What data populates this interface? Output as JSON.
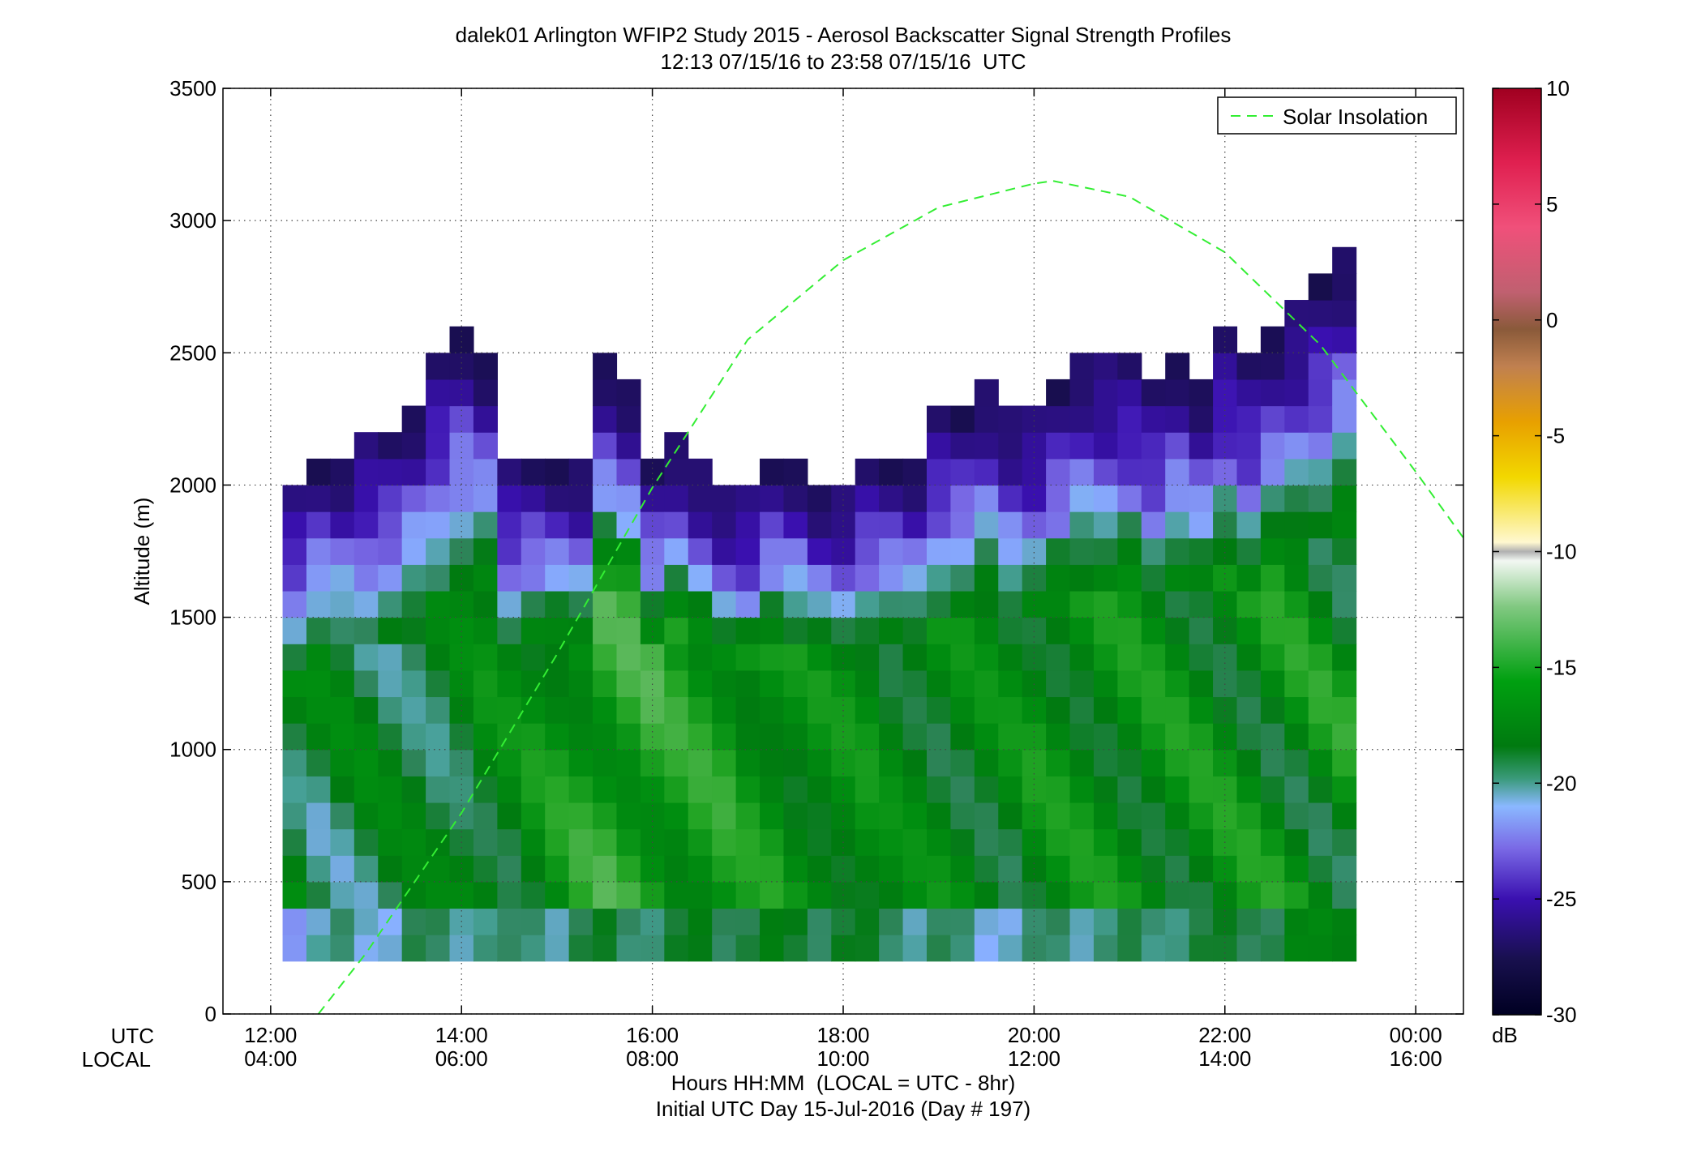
{
  "chart_data": {
    "type": "heatmap",
    "title": "dalek01 Arlington WFIP2 Study 2015 - Aerosol Backscatter Signal Strength Profiles",
    "subtitle": "12:13 07/15/16 to 23:58 07/15/16  UTC",
    "ylabel": "Altitude (m)",
    "xlabel": "Hours HH:MM  (LOCAL = UTC - 8hr)",
    "xlabel2": "Initial UTC Day 15-Jul-2016 (Day # 197)",
    "x_row_labels": [
      "UTC",
      "LOCAL"
    ],
    "x_unit": "hours UTC",
    "xlim": [
      11.5,
      24.5
    ],
    "ylim": [
      0,
      3500
    ],
    "grid": true,
    "x_ticks": [
      {
        "value": 12,
        "utc": "12:00",
        "local": "04:00"
      },
      {
        "value": 14,
        "utc": "14:00",
        "local": "06:00"
      },
      {
        "value": 16,
        "utc": "16:00",
        "local": "08:00"
      },
      {
        "value": 18,
        "utc": "18:00",
        "local": "10:00"
      },
      {
        "value": 20,
        "utc": "20:00",
        "local": "12:00"
      },
      {
        "value": 22,
        "utc": "22:00",
        "local": "14:00"
      },
      {
        "value": 24,
        "utc": "00:00",
        "local": "16:00"
      }
    ],
    "y_ticks": [
      "0",
      "500",
      "1000",
      "1500",
      "2000",
      "2500",
      "3000",
      "3500"
    ],
    "colorbar": {
      "unit": "dB",
      "range": [
        -30,
        10
      ],
      "ticks": [
        "-30",
        "-25",
        "-20",
        "-15",
        "-10",
        "-5",
        "0",
        "5",
        "10"
      ]
    },
    "legend": {
      "placement": "top-right",
      "entries": [
        {
          "name": "Solar Insolation",
          "style": "dashed",
          "color": "#33ee33"
        }
      ]
    },
    "heatmap": {
      "time_start": 12.25,
      "time_step": 0.25,
      "alt_start": 200,
      "alt_step": 100,
      "columns": [
        {
          "top": 2000,
          "base": -19.5,
          "mix": 2.0,
          "lo": -22.0,
          "up": 0.5
        },
        {
          "top": 2100,
          "base": -20.0,
          "mix": 2.0,
          "lo": -22.0,
          "up": 0.5
        },
        {
          "top": 2100,
          "base": -20.0,
          "mix": 2.0,
          "lo": -21.5,
          "up": 0.5
        },
        {
          "top": 2200,
          "base": -20.0,
          "mix": 2.0,
          "lo": -21.5,
          "up": 0.5
        },
        {
          "top": 2200,
          "base": -20.0,
          "mix": 1.8,
          "lo": -21.5,
          "up": 0.5
        },
        {
          "top": 2300,
          "base": -20.0,
          "mix": 1.6,
          "lo": -21.0,
          "up": 0.6
        },
        {
          "top": 2500,
          "base": -20.0,
          "mix": 1.6,
          "lo": -21.0,
          "up": 0.6
        },
        {
          "top": 2600,
          "base": -19.5,
          "mix": 1.6,
          "lo": -21.0,
          "up": 0.6
        },
        {
          "top": 2500,
          "base": -19.0,
          "mix": 1.6,
          "lo": -21.0,
          "up": 0.6
        },
        {
          "top": 2100,
          "base": -19.0,
          "mix": 1.6,
          "lo": -21.5,
          "up": 0.5
        },
        {
          "top": 2100,
          "base": -18.5,
          "mix": 1.6,
          "lo": -21.0,
          "up": 0.5
        },
        {
          "top": 2100,
          "base": -18.0,
          "mix": 1.6,
          "lo": -21.0,
          "up": 0.5
        },
        {
          "top": 2100,
          "base": -17.5,
          "mix": 1.6,
          "lo": -20.5,
          "up": 0.5
        },
        {
          "top": 2500,
          "base": -17.0,
          "mix": 1.6,
          "lo": -20.5,
          "up": 0.5
        },
        {
          "top": 2400,
          "base": -17.0,
          "mix": 1.6,
          "lo": -20.5,
          "up": 0.5
        },
        {
          "top": 2100,
          "base": -17.0,
          "mix": 1.6,
          "lo": -20.5,
          "up": 0.5
        },
        {
          "top": 2200,
          "base": -17.5,
          "mix": 1.6,
          "lo": -20.5,
          "up": 0.5
        },
        {
          "top": 2100,
          "base": -17.5,
          "mix": 1.5,
          "lo": -20.0,
          "up": 0.5
        },
        {
          "top": 2000,
          "base": -17.5,
          "mix": 1.5,
          "lo": -20.0,
          "up": 0.5
        },
        {
          "top": 2000,
          "base": -18.0,
          "mix": 1.5,
          "lo": -20.0,
          "up": 0.5
        },
        {
          "top": 2100,
          "base": -18.0,
          "mix": 1.5,
          "lo": -20.0,
          "up": 0.5
        },
        {
          "top": 2100,
          "base": -18.5,
          "mix": 1.4,
          "lo": -20.0,
          "up": 0.5
        },
        {
          "top": 2000,
          "base": -18.5,
          "mix": 1.4,
          "lo": -20.0,
          "up": 0.5
        },
        {
          "top": 2000,
          "base": -18.5,
          "mix": 1.4,
          "lo": -20.0,
          "up": 0.5
        },
        {
          "top": 2100,
          "base": -18.5,
          "mix": 1.4,
          "lo": -20.5,
          "up": 0.5
        },
        {
          "top": 2100,
          "base": -19.0,
          "mix": 1.4,
          "lo": -20.5,
          "up": 0.5
        },
        {
          "top": 2100,
          "base": -19.0,
          "mix": 1.4,
          "lo": -21.0,
          "up": 0.5
        },
        {
          "top": 2300,
          "base": -19.0,
          "mix": 1.6,
          "lo": -21.0,
          "up": 0.5
        },
        {
          "top": 2300,
          "base": -19.0,
          "mix": 1.6,
          "lo": -21.5,
          "up": 0.5
        },
        {
          "top": 2400,
          "base": -19.0,
          "mix": 1.6,
          "lo": -21.5,
          "up": 0.5
        },
        {
          "top": 2300,
          "base": -19.0,
          "mix": 1.7,
          "lo": -21.5,
          "up": 0.5
        },
        {
          "top": 2300,
          "base": -18.5,
          "mix": 1.7,
          "lo": -21.5,
          "up": 0.5
        },
        {
          "top": 2400,
          "base": -18.5,
          "mix": 1.7,
          "lo": -21.0,
          "up": 0.5
        },
        {
          "top": 2500,
          "base": -18.5,
          "mix": 1.7,
          "lo": -21.0,
          "up": 0.5
        },
        {
          "top": 2500,
          "base": -18.5,
          "mix": 1.7,
          "lo": -21.0,
          "up": 0.5
        },
        {
          "top": 2500,
          "base": -18.5,
          "mix": 1.8,
          "lo": -21.0,
          "up": 0.5
        },
        {
          "top": 2400,
          "base": -18.5,
          "mix": 1.8,
          "lo": -21.0,
          "up": 0.5
        },
        {
          "top": 2500,
          "base": -18.5,
          "mix": 1.9,
          "lo": -20.5,
          "up": 0.5
        },
        {
          "top": 2400,
          "base": -18.5,
          "mix": 1.9,
          "lo": -20.5,
          "up": 0.5
        },
        {
          "top": 2600,
          "base": -18.5,
          "mix": 2.0,
          "lo": -20.5,
          "up": 0.5
        },
        {
          "top": 2500,
          "base": -18.5,
          "mix": 2.0,
          "lo": -20.0,
          "up": 0.5
        },
        {
          "top": 2600,
          "base": -18.5,
          "mix": 2.1,
          "lo": -20.0,
          "up": 0.5
        },
        {
          "top": 2700,
          "base": -18.5,
          "mix": 2.2,
          "lo": -19.5,
          "up": 0.4
        },
        {
          "top": 2800,
          "base": -18.5,
          "mix": 2.3,
          "lo": -19.0,
          "up": 0.4
        },
        {
          "top": 2900,
          "base": -18.5,
          "mix": 2.4,
          "lo": -18.5,
          "up": 0.4
        }
      ]
    },
    "solar_insolation": {
      "x": [
        12.5,
        13.0,
        14.0,
        15.0,
        16.0,
        17.0,
        18.0,
        19.0,
        20.0,
        20.2,
        21.0,
        22.0,
        23.0,
        24.0,
        24.5
      ],
      "y": [
        0,
        230,
        760,
        1360,
        1990,
        2550,
        2850,
        3050,
        3140,
        3150,
        3090,
        2880,
        2530,
        2050,
        1800
      ]
    }
  }
}
